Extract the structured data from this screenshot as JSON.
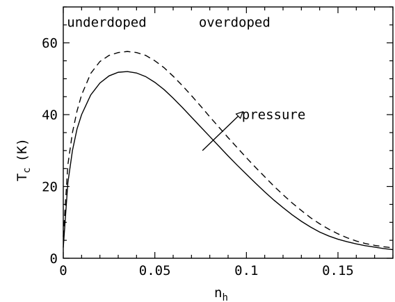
{
  "chart_data": {
    "type": "line",
    "xlabel": "n",
    "xlabel_sub": "h",
    "ylabel": "T",
    "ylabel_sub": "c",
    "ylabel_unit": "(K)",
    "xlim": [
      0,
      0.18
    ],
    "ylim": [
      0,
      70
    ],
    "x_ticks": [
      {
        "value": 0,
        "label": "0"
      },
      {
        "value": 0.05,
        "label": "0.05"
      },
      {
        "value": 0.1,
        "label": "0.1"
      },
      {
        "value": 0.15,
        "label": "0.15"
      }
    ],
    "y_ticks": [
      {
        "value": 0,
        "label": "0"
      },
      {
        "value": 20,
        "label": "20"
      },
      {
        "value": 40,
        "label": "40"
      },
      {
        "value": 60,
        "label": "60"
      }
    ],
    "grid": false,
    "series": [
      {
        "style": "solid",
        "x": [
          0.0,
          0.0025,
          0.005,
          0.0075,
          0.01,
          0.015,
          0.02,
          0.025,
          0.03,
          0.035,
          0.04,
          0.045,
          0.05,
          0.055,
          0.06,
          0.065,
          0.07,
          0.075,
          0.08,
          0.085,
          0.09,
          0.095,
          0.1,
          0.105,
          0.11,
          0.115,
          0.12,
          0.125,
          0.13,
          0.135,
          0.14,
          0.145,
          0.15,
          0.155,
          0.16,
          0.165,
          0.17,
          0.175,
          0.18
        ],
        "y": [
          3.0,
          21.0,
          30.0,
          36.0,
          40.0,
          45.5,
          48.8,
          50.8,
          51.8,
          52.0,
          51.6,
          50.6,
          49.0,
          47.0,
          44.6,
          42.0,
          39.3,
          36.6,
          33.9,
          31.2,
          28.5,
          25.9,
          23.4,
          20.9,
          18.5,
          16.2,
          14.1,
          12.1,
          10.3,
          8.7,
          7.3,
          6.2,
          5.3,
          4.6,
          4.0,
          3.5,
          3.1,
          2.7,
          2.4
        ]
      },
      {
        "style": "dashed",
        "x": [
          0.0,
          0.0025,
          0.005,
          0.0075,
          0.01,
          0.015,
          0.02,
          0.025,
          0.03,
          0.035,
          0.04,
          0.045,
          0.05,
          0.055,
          0.06,
          0.065,
          0.07,
          0.075,
          0.08,
          0.085,
          0.09,
          0.095,
          0.1,
          0.105,
          0.11,
          0.115,
          0.12,
          0.125,
          0.13,
          0.135,
          0.14,
          0.145,
          0.15,
          0.155,
          0.16,
          0.165,
          0.17,
          0.175,
          0.18
        ],
        "y": [
          6.0,
          26.0,
          35.0,
          41.0,
          45.5,
          51.5,
          54.8,
          56.5,
          57.3,
          57.6,
          57.3,
          56.5,
          55.0,
          53.1,
          50.7,
          48.1,
          45.3,
          42.4,
          39.4,
          36.5,
          33.6,
          30.8,
          28.0,
          25.3,
          22.7,
          20.1,
          17.7,
          15.4,
          13.3,
          11.3,
          9.6,
          8.1,
          6.8,
          5.7,
          4.8,
          4.1,
          3.6,
          3.2,
          2.9
        ]
      }
    ],
    "annotations": [
      {
        "text": "underdoped",
        "x": 0.002,
        "y": 64.5
      },
      {
        "text": "overdoped",
        "x": 0.074,
        "y": 64.5
      },
      {
        "text": "pressure",
        "x": 0.0975,
        "y": 38.8
      }
    ],
    "arrow": {
      "from": [
        0.076,
        30.0
      ],
      "to": [
        0.098,
        40.8
      ]
    }
  }
}
